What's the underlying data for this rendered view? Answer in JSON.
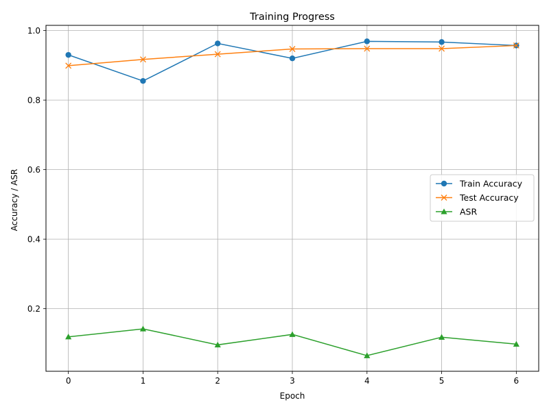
{
  "chart_data": {
    "type": "line",
    "title": "Training Progress",
    "xlabel": "Epoch",
    "ylabel": "Accuracy / ASR",
    "x": [
      0,
      1,
      2,
      3,
      4,
      5,
      6
    ],
    "xticks": [
      "0",
      "1",
      "2",
      "3",
      "4",
      "5",
      "6"
    ],
    "yticks": [
      "0.2",
      "0.4",
      "0.6",
      "0.8",
      "1.0"
    ],
    "xlim": [
      -0.3,
      6.3
    ],
    "ylim": [
      0.02,
      1.015
    ],
    "grid": true,
    "legend_position": "center-right",
    "series": [
      {
        "name": "Train Accuracy",
        "color": "#1f77b4",
        "marker": "circle",
        "values": [
          0.93,
          0.855,
          0.963,
          0.92,
          0.969,
          0.967,
          0.957
        ]
      },
      {
        "name": "Test Accuracy",
        "color": "#ff7f0e",
        "marker": "x",
        "values": [
          0.899,
          0.917,
          0.932,
          0.947,
          0.948,
          0.948,
          0.957
        ]
      },
      {
        "name": "ASR",
        "color": "#2ca02c",
        "marker": "triangle",
        "values": [
          0.119,
          0.142,
          0.096,
          0.126,
          0.065,
          0.118,
          0.098
        ]
      }
    ]
  }
}
